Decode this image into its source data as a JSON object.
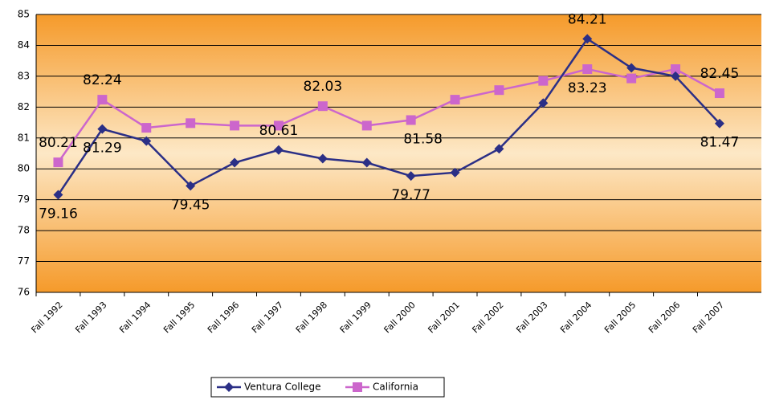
{
  "chart_data": {
    "type": "line",
    "categories": [
      "Fall 1992",
      "Fall 1993",
      "Fall 1994",
      "Fall 1995",
      "Fall 1996",
      "Fall 1997",
      "Fall 1998",
      "Fall 1999",
      "Fall 2000",
      "Fall 2001",
      "Fall 2002",
      "Fall 2003",
      "Fall 2004",
      "Fall 2005",
      "Fall 2006",
      "Fall 2007"
    ],
    "series": [
      {
        "name": "Ventura College",
        "color": "#2b2f86",
        "marker": "diamond",
        "values": [
          79.16,
          81.29,
          80.9,
          79.45,
          80.2,
          80.61,
          80.33,
          80.2,
          79.77,
          79.88,
          80.65,
          82.13,
          84.21,
          83.27,
          83.0,
          81.47
        ],
        "value_labels": [
          "79.16",
          "81.29",
          null,
          "79.45",
          null,
          "80.61",
          null,
          null,
          "79.77",
          null,
          null,
          null,
          "84.21",
          null,
          null,
          "81.47"
        ]
      },
      {
        "name": "California",
        "color": "#cc66cc",
        "marker": "square",
        "values": [
          80.21,
          82.24,
          81.33,
          81.48,
          81.4,
          81.4,
          82.03,
          81.4,
          81.58,
          82.24,
          82.55,
          82.85,
          83.23,
          82.93,
          83.23,
          82.45
        ],
        "value_labels": [
          "80.21",
          "82.24",
          null,
          null,
          null,
          null,
          "82.03",
          null,
          "81.58",
          null,
          null,
          null,
          "83.23",
          null,
          null,
          "82.45"
        ]
      }
    ],
    "ylim": [
      76,
      85
    ],
    "yticks": [
      76,
      77,
      78,
      79,
      80,
      81,
      82,
      83,
      84,
      85
    ],
    "grid": true,
    "legend": "bottom"
  }
}
